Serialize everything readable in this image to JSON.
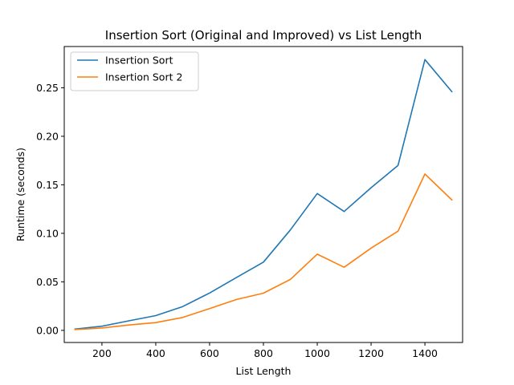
{
  "chart_data": {
    "type": "line",
    "title": "Insertion Sort (Original and Improved) vs List Length",
    "xlabel": "List Length",
    "ylabel": "Runtime (seconds)",
    "xlim": [
      60,
      1540
    ],
    "ylim": [
      -0.0125,
      0.2925
    ],
    "xticks": [
      200,
      400,
      600,
      800,
      1000,
      1200,
      1400
    ],
    "yticks": [
      0.0,
      0.05,
      0.1,
      0.15,
      0.2,
      0.25
    ],
    "ytick_labels": [
      "0.00",
      "0.05",
      "0.10",
      "0.15",
      "0.20",
      "0.25"
    ],
    "grid": false,
    "legend_position": "upper-left",
    "x": [
      100,
      200,
      300,
      400,
      500,
      600,
      700,
      800,
      900,
      1000,
      1100,
      1200,
      1300,
      1400,
      1500
    ],
    "series": [
      {
        "name": "Insertion Sort",
        "color": "#1f77b4",
        "values": [
          0.0013,
          0.0043,
          0.0098,
          0.0152,
          0.0245,
          0.0385,
          0.0545,
          0.0703,
          0.1035,
          0.141,
          0.1225,
          0.147,
          0.17,
          0.279,
          0.246
        ]
      },
      {
        "name": "Insertion Sort 2",
        "color": "#ff7f0e",
        "values": [
          0.0008,
          0.0025,
          0.0055,
          0.008,
          0.0133,
          0.0225,
          0.0318,
          0.0383,
          0.0525,
          0.0785,
          0.065,
          0.0848,
          0.1022,
          0.1612,
          0.1345
        ]
      }
    ]
  }
}
